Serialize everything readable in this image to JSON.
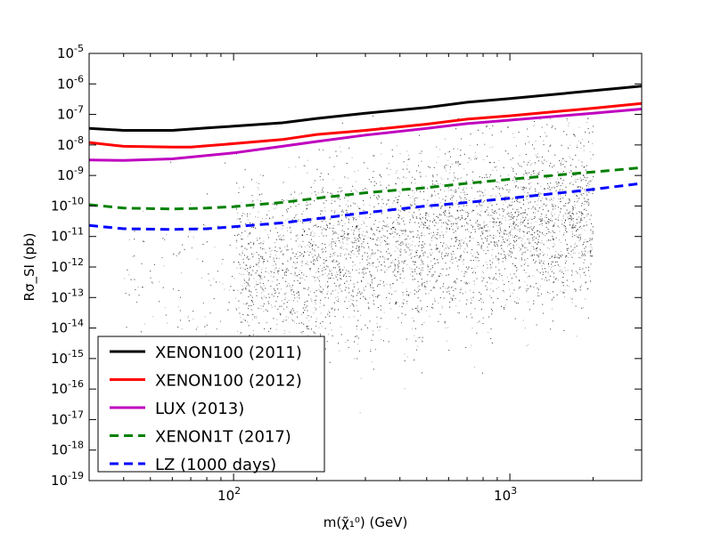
{
  "chart_data": {
    "type": "scatter",
    "xlabel": "m(χ̃₁⁰) (GeV)",
    "ylabel": "Rσ_SI (pb)",
    "x_scale": "log",
    "y_scale": "log",
    "xlim": [
      30,
      3000
    ],
    "ylim": [
      1e-19,
      1e-05
    ],
    "x_ticks": [
      {
        "value": 100,
        "base": "10",
        "exp": "2"
      },
      {
        "value": 1000,
        "base": "10",
        "exp": "3"
      }
    ],
    "y_ticks": [
      {
        "value": -5,
        "base": "10",
        "exp": "-5"
      },
      {
        "value": -6,
        "base": "10",
        "exp": "-6"
      },
      {
        "value": -7,
        "base": "10",
        "exp": "-7"
      },
      {
        "value": -8,
        "base": "10",
        "exp": "-8"
      },
      {
        "value": -9,
        "base": "10",
        "exp": "-9"
      },
      {
        "value": -10,
        "base": "10",
        "exp": "-10"
      },
      {
        "value": -11,
        "base": "10",
        "exp": "-11"
      },
      {
        "value": -12,
        "base": "10",
        "exp": "-12"
      },
      {
        "value": -13,
        "base": "10",
        "exp": "-13"
      },
      {
        "value": -14,
        "base": "10",
        "exp": "-14"
      },
      {
        "value": -15,
        "base": "10",
        "exp": "-15"
      },
      {
        "value": -16,
        "base": "10",
        "exp": "-16"
      },
      {
        "value": -17,
        "base": "10",
        "exp": "-17"
      },
      {
        "value": -18,
        "base": "10",
        "exp": "-18"
      },
      {
        "value": -19,
        "base": "10",
        "exp": "-19"
      }
    ],
    "legend_position": "lower-left",
    "scatter_cloud": {
      "color": "#000000",
      "x_range": [
        100,
        2000
      ],
      "log_y_range": [
        -19,
        -7
      ]
    },
    "series": [
      {
        "name": "XENON100 (2011)",
        "color": "#000000",
        "dash": "solid",
        "x": [
          30,
          40,
          60,
          80,
          100,
          150,
          200,
          300,
          500,
          700,
          1000,
          2000,
          3000
        ],
        "y": [
          3.5e-08,
          3e-08,
          3e-08,
          3.6e-08,
          4.1e-08,
          5.3e-08,
          7.4e-08,
          1.1e-07,
          1.7e-07,
          2.5e-07,
          3.3e-07,
          6e-07,
          8.5e-07
        ]
      },
      {
        "name": "XENON100 (2012)",
        "color": "#ff0000",
        "dash": "solid",
        "x": [
          30,
          40,
          60,
          70,
          100,
          150,
          200,
          300,
          500,
          700,
          1000,
          2000,
          3000
        ],
        "y": [
          1.2e-08,
          9e-09,
          8.5e-09,
          8.5e-09,
          1.1e-08,
          1.5e-08,
          2.2e-08,
          3e-08,
          4.8e-08,
          7e-08,
          9e-08,
          1.6e-07,
          2.3e-07
        ]
      },
      {
        "name": "LUX (2013)",
        "color": "#bf00bf",
        "dash": "solid",
        "x": [
          30,
          40,
          60,
          100,
          150,
          200,
          300,
          500,
          700,
          1000,
          2000,
          3000
        ],
        "y": [
          3.2e-09,
          3.1e-09,
          3.5e-09,
          5.5e-09,
          9e-09,
          1.3e-08,
          2.1e-08,
          3.5e-08,
          5e-08,
          6.5e-08,
          1.1e-07,
          1.5e-07
        ]
      },
      {
        "name": "XENON1T (2017)",
        "color": "#008000",
        "dash": "dashed",
        "x": [
          30,
          40,
          60,
          80,
          100,
          150,
          200,
          300,
          500,
          700,
          1000,
          2000,
          3000
        ],
        "y": [
          1.1e-10,
          8.5e-11,
          8e-11,
          8.5e-11,
          9.5e-11,
          1.3e-10,
          1.8e-10,
          2.7e-10,
          4e-10,
          5.5e-10,
          7.5e-10,
          1.3e-09,
          1.8e-09
        ]
      },
      {
        "name": "LZ (1000 days)",
        "color": "#0000ff",
        "dash": "dashed",
        "x": [
          30,
          40,
          60,
          80,
          100,
          150,
          200,
          300,
          500,
          700,
          1000,
          2000,
          3000
        ],
        "y": [
          2.3e-11,
          1.8e-11,
          1.7e-11,
          1.8e-11,
          2.1e-11,
          2.8e-11,
          3.8e-11,
          6e-11,
          1e-10,
          1.3e-10,
          1.8e-10,
          3.5e-10,
          5.5e-10
        ]
      }
    ]
  }
}
